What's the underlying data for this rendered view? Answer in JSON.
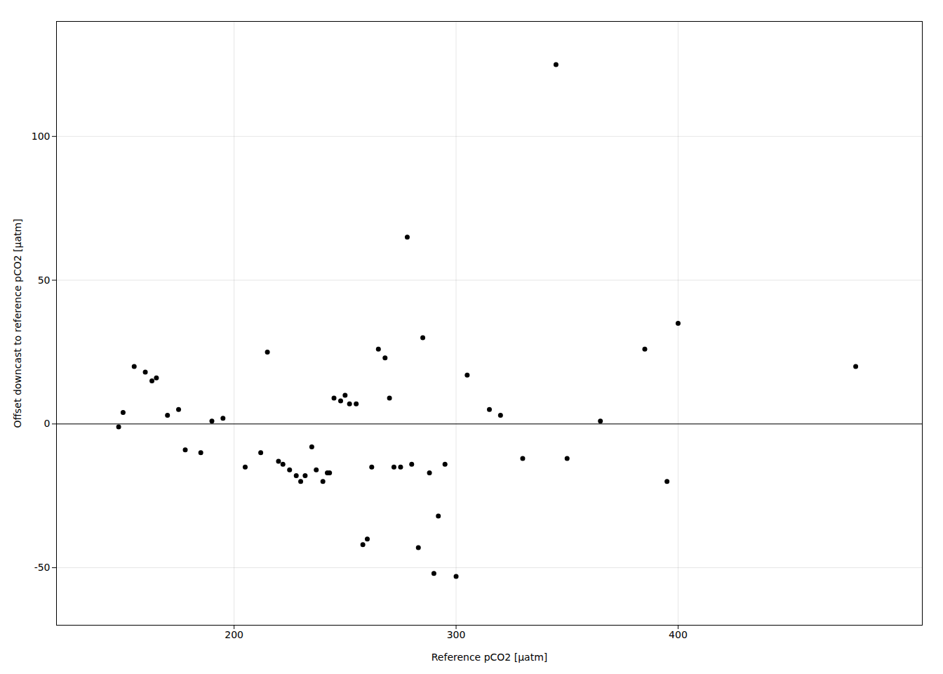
{
  "chart_data": {
    "type": "scatter",
    "x": [
      148,
      150,
      155,
      160,
      163,
      165,
      170,
      175,
      178,
      185,
      190,
      195,
      205,
      212,
      215,
      220,
      222,
      225,
      228,
      230,
      232,
      235,
      237,
      240,
      242,
      243,
      245,
      248,
      250,
      252,
      255,
      258,
      260,
      262,
      265,
      268,
      270,
      272,
      275,
      278,
      280,
      283,
      285,
      288,
      290,
      292,
      295,
      300,
      305,
      315,
      320,
      330,
      345,
      350,
      365,
      385,
      395,
      400,
      480
    ],
    "y": [
      -1,
      4,
      20,
      18,
      15,
      16,
      3,
      5,
      -9,
      -10,
      1,
      2,
      -15,
      -10,
      25,
      -13,
      -14,
      -16,
      -18,
      -20,
      -18,
      -8,
      -16,
      -20,
      -17,
      -17,
      9,
      8,
      10,
      7,
      7,
      -42,
      -40,
      -15,
      26,
      23,
      9,
      -15,
      -15,
      65,
      -14,
      -43,
      30,
      -17,
      -52,
      -32,
      -14,
      -53,
      17,
      5,
      3,
      -12,
      125,
      -12,
      1,
      26,
      -20,
      35,
      20
    ],
    "xlabel": "Reference pCO2 [μatm]",
    "ylabel": "Offset downcast to reference pCO2 [μatm]",
    "xlim": [
      120,
      510
    ],
    "ylim": [
      -70,
      140
    ],
    "xticks": [
      200,
      300,
      400
    ],
    "yticks": [
      -50,
      0,
      50,
      100
    ],
    "hline_y": 0,
    "color": "#000000",
    "grid": true
  }
}
